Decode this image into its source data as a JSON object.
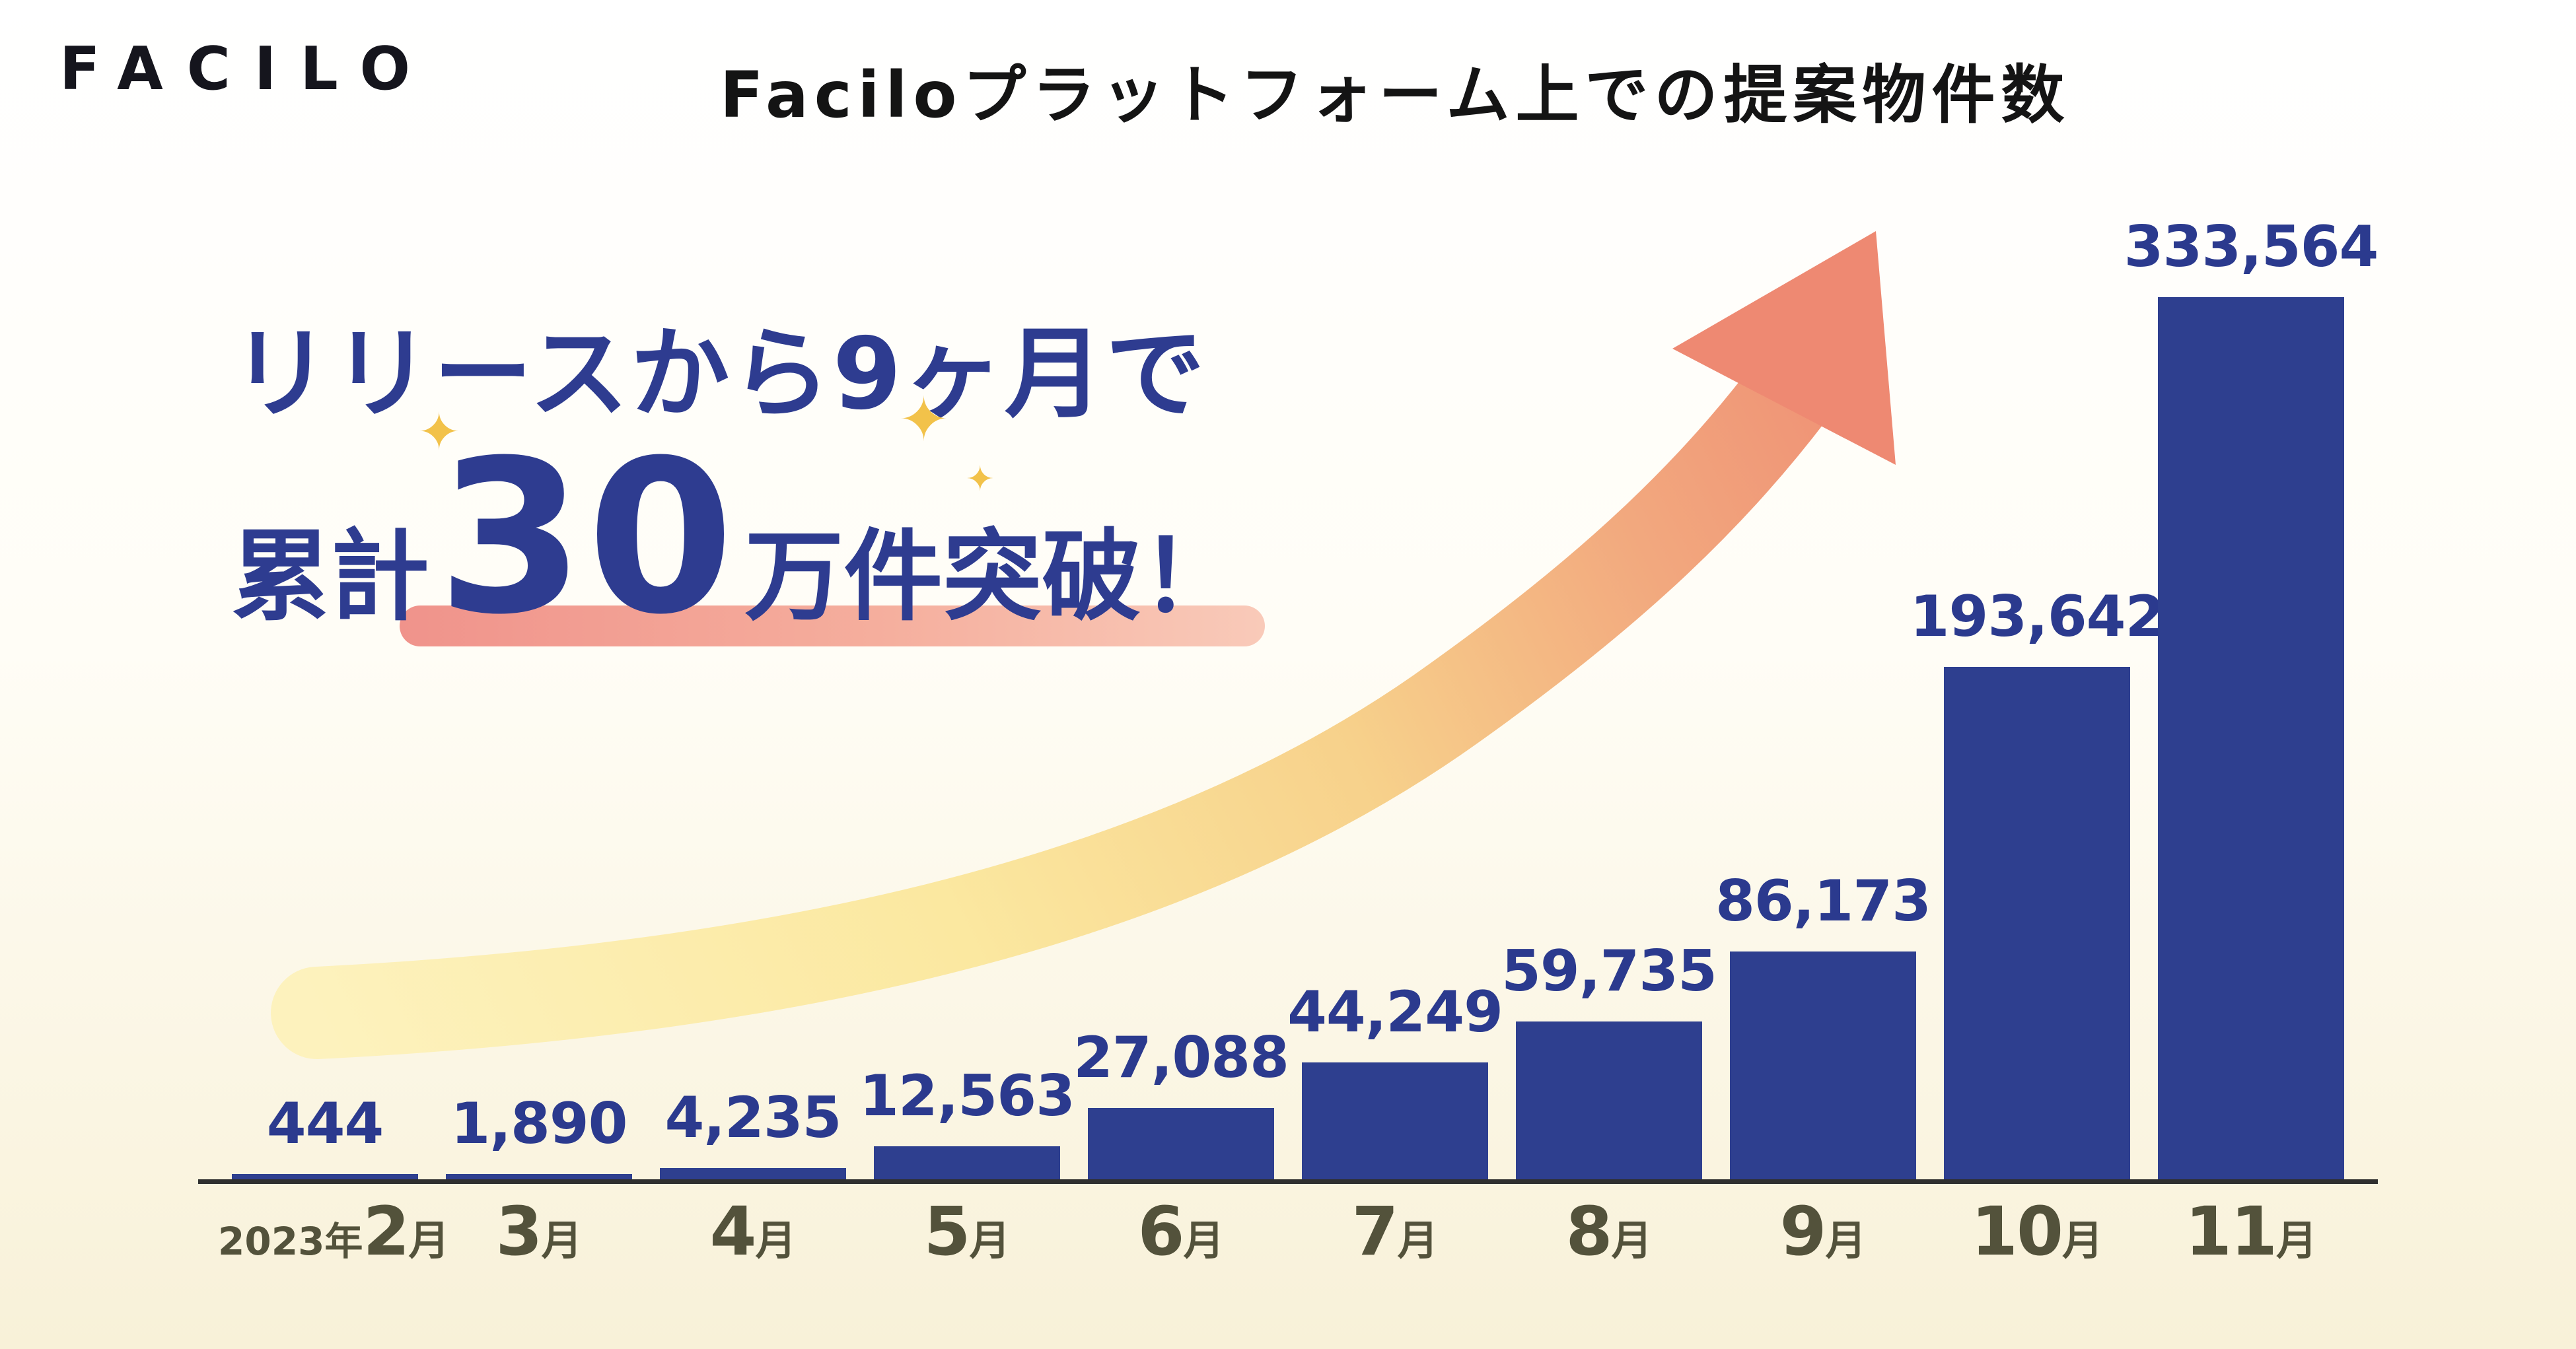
{
  "header": {
    "logo": "FACILO",
    "title": "Faciloプラットフォーム上での提案物件数"
  },
  "headline": {
    "line1": "リリースから9ヶ月で",
    "line2_prefix": "累計",
    "line2_big": "30",
    "line2_suffix": "万件突破！",
    "text_color": "#2e3c90",
    "underline_gradient": [
      "#f0938b",
      "#f9cab9"
    ],
    "sparkle": "✦"
  },
  "chart_data": {
    "type": "bar",
    "title": "Faciloプラットフォーム上での提案物件数",
    "categories": [
      "2023年2月",
      "3月",
      "4月",
      "5月",
      "6月",
      "7月",
      "8月",
      "9月",
      "10月",
      "11月"
    ],
    "values": [
      444,
      1890,
      4235,
      12563,
      27088,
      44249,
      59735,
      86173,
      193642,
      333564
    ],
    "value_labels": [
      "444",
      "1,890",
      "4,235",
      "12,563",
      "27,088",
      "44,249",
      "59,735",
      "86,173",
      "193,642",
      "333,564"
    ],
    "x_tick_parts": [
      {
        "prefix": "2023年",
        "num": "2",
        "unit": "月"
      },
      {
        "num": "3",
        "unit": "月"
      },
      {
        "num": "4",
        "unit": "月"
      },
      {
        "num": "5",
        "unit": "月"
      },
      {
        "num": "6",
        "unit": "月"
      },
      {
        "num": "7",
        "unit": "月"
      },
      {
        "num": "8",
        "unit": "月"
      },
      {
        "num": "9",
        "unit": "月"
      },
      {
        "num": "10",
        "unit": "月"
      },
      {
        "num": "11",
        "unit": "月"
      }
    ],
    "xlabel": "",
    "ylabel": "",
    "ylim": [
      0,
      333564
    ],
    "grid": false,
    "legend": false,
    "bar_color": "#2e3f8f",
    "value_label_color": "#2b3a8e",
    "tick_label_color": "#53523b",
    "annotation": "リリースから9ヶ月で累計30万件突破！",
    "arrow": {
      "style": "curved-growth-arrow",
      "gradient": [
        "#fdf2bd",
        "#fbe8a0",
        "#f7d18b",
        "#f2a87e",
        "#ee8972"
      ]
    }
  }
}
